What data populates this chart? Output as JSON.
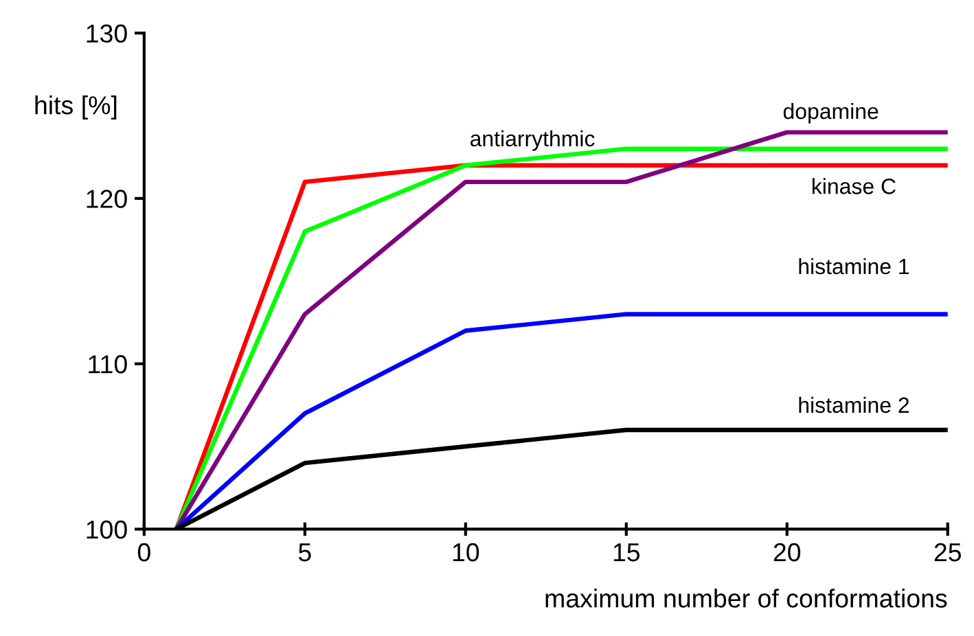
{
  "chart_data": {
    "type": "line",
    "xlabel": "maximum number of conformations",
    "ylabel": "hits [%]",
    "x": [
      1,
      5,
      10,
      15,
      20,
      25
    ],
    "series": [
      {
        "name": "kinase C",
        "color": "#ff0000",
        "values": [
          100,
          121,
          122,
          122,
          122,
          122
        ]
      },
      {
        "name": "antiarrythmic",
        "color": "#00ff00",
        "values": [
          100,
          118,
          122,
          123,
          123,
          123
        ]
      },
      {
        "name": "dopamine",
        "color": "#800080",
        "values": [
          100,
          113,
          121,
          121,
          124,
          124
        ]
      },
      {
        "name": "histamine 1",
        "color": "#0000ff",
        "values": [
          100,
          107,
          112,
          113,
          113,
          113
        ]
      },
      {
        "name": "histamine 2",
        "color": "#000000",
        "values": [
          100,
          104,
          105,
          106,
          106,
          106
        ]
      }
    ],
    "xlim": [
      0,
      25
    ],
    "xticks": [
      0,
      5,
      10,
      15,
      20,
      25
    ],
    "ylim": [
      100,
      130
    ],
    "yticks": [
      100,
      110,
      120,
      130
    ],
    "grid": false,
    "legend": false,
    "marker": "none",
    "line_style": "solid"
  }
}
